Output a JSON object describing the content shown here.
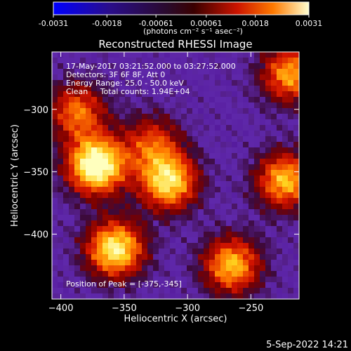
{
  "colorbar": {
    "tick_labels": [
      "-0.0031",
      "-0.0018",
      "-0.00061",
      "0.00061",
      "0.0018",
      "0.0031"
    ],
    "units_label": "(photons cm⁻² s⁻¹ asec⁻²)"
  },
  "chart_data": {
    "type": "heatmap",
    "title": "Reconstructed RHESSI Image",
    "xlabel": "Heliocentric X (arcsec)",
    "ylabel": "Heliocentric Y (arcsec)",
    "xlim": [
      -407,
      -212
    ],
    "ylim": [
      -452,
      -254
    ],
    "x_ticks": [
      -400,
      -350,
      -300,
      -250
    ],
    "y_ticks": [
      -300,
      -350,
      -400
    ],
    "x_tick_labels": [
      "−400",
      "−350",
      "−300",
      "−250"
    ],
    "y_tick_labels": [
      "−300",
      "−350",
      "−400"
    ],
    "value_range": [
      -0.0031,
      0.0031
    ],
    "colormap": "rhessi-blue-purple-red-yellow",
    "info_lines": [
      "17-May-2017 03:21:52.000 to 03:27:52.000",
      "Detectors: 3F 6F 8F, Att 0",
      "Energy Range: 25.0 - 50.0 keV",
      "Clean     Total counts: 1.94E+04"
    ],
    "peak_label": "Position of Peak = [-375,-345]",
    "peak_position": [
      -375,
      -345
    ],
    "sources": [
      {
        "x": -372,
        "y": -345,
        "peak": 1.0
      },
      {
        "x": -357,
        "y": -412,
        "peak": 0.85
      },
      {
        "x": -315,
        "y": -358,
        "peak": 0.8
      },
      {
        "x": -265,
        "y": -425,
        "peak": 0.7
      },
      {
        "x": -223,
        "y": -357,
        "peak": 0.7
      },
      {
        "x": -219,
        "y": -272,
        "peak": 0.65
      },
      {
        "x": -387,
        "y": -302,
        "peak": 0.55
      },
      {
        "x": -328,
        "y": -327,
        "peak": 0.45
      }
    ]
  },
  "footer": {
    "date_stamp": "5-Sep-2022 14:21"
  }
}
